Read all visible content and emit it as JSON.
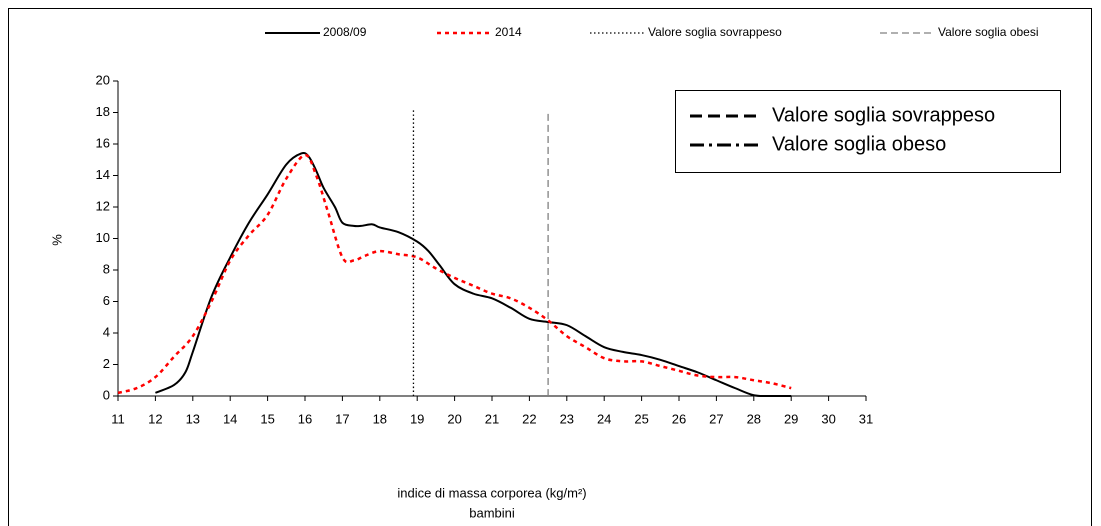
{
  "chart_data": {
    "type": "line",
    "xlabel": "indice di massa corporea (kg/m²)",
    "xlabel2": "bambini",
    "ylabel": "%",
    "xlim": [
      11,
      31
    ],
    "xticks": [
      11,
      12,
      13,
      14,
      15,
      16,
      17,
      18,
      19,
      20,
      21,
      22,
      23,
      24,
      25,
      26,
      27,
      28,
      29,
      30,
      31
    ],
    "ylim": [
      0,
      20
    ],
    "yticks": [
      0,
      2,
      4,
      6,
      8,
      10,
      12,
      14,
      16,
      18,
      20
    ],
    "grid": false,
    "legend": "top",
    "series": [
      {
        "name": "2008/09",
        "color": "#000000",
        "style": "solid",
        "x": [
          12,
          12.5,
          12.8,
          13,
          13.5,
          14,
          14.5,
          15,
          15.5,
          15.9,
          16.1,
          16.3,
          16.5,
          16.8,
          17,
          17.3,
          17.5,
          17.8,
          18,
          18.5,
          19,
          19.3,
          19.6,
          20,
          20.5,
          21,
          21.5,
          22,
          22.5,
          23,
          23.5,
          24,
          24.5,
          25,
          25.5,
          26,
          26.5,
          27,
          27.5,
          28,
          28.5,
          29
        ],
        "values": [
          0.2,
          0.7,
          1.5,
          2.8,
          6.3,
          8.8,
          11.0,
          12.8,
          14.7,
          15.4,
          15.2,
          14.3,
          13.2,
          12.0,
          11.0,
          10.8,
          10.8,
          10.9,
          10.7,
          10.4,
          9.8,
          9.2,
          8.3,
          7.1,
          6.5,
          6.2,
          5.6,
          4.9,
          4.7,
          4.5,
          3.8,
          3.1,
          2.8,
          2.6,
          2.3,
          1.9,
          1.5,
          1.0,
          0.5,
          0.05,
          0,
          0
        ]
      },
      {
        "name": "2014",
        "color": "#ff0000",
        "style": "dotted-thick",
        "x": [
          11,
          11.5,
          12,
          12.5,
          13,
          13.5,
          14,
          14.5,
          15,
          15.5,
          16,
          16.3,
          16.6,
          17,
          17.3,
          17.6,
          18,
          18.5,
          19,
          19.5,
          20,
          20.5,
          21,
          21.5,
          22,
          22.5,
          23,
          23.5,
          24,
          24.5,
          25,
          25.5,
          26,
          26.5,
          27,
          27.5,
          28,
          28.5,
          29
        ],
        "values": [
          0.2,
          0.5,
          1.2,
          2.5,
          3.8,
          6.0,
          8.6,
          10.2,
          11.5,
          13.8,
          15.3,
          14.0,
          11.8,
          8.8,
          8.6,
          8.9,
          9.2,
          9.0,
          8.8,
          8.1,
          7.5,
          7.0,
          6.5,
          6.2,
          5.6,
          4.8,
          3.8,
          3.1,
          2.4,
          2.2,
          2.2,
          1.9,
          1.6,
          1.3,
          1.2,
          1.2,
          1.0,
          0.8,
          0.5
        ]
      },
      {
        "name": "Valore soglia sovrappeso",
        "color": "#000000",
        "style": "dotted",
        "x": [
          18.9,
          18.9
        ],
        "values": [
          0,
          18.2
        ]
      },
      {
        "name": "Valore soglia obesi",
        "color": "#808080",
        "style": "dashed",
        "x": [
          22.5,
          22.5
        ],
        "values": [
          0,
          18
        ]
      }
    ],
    "box_legend": [
      {
        "name": "Valore soglia sovrappeso",
        "style": "long-dash"
      },
      {
        "name": "Valore soglia obeso",
        "style": "dash-dot"
      }
    ]
  }
}
